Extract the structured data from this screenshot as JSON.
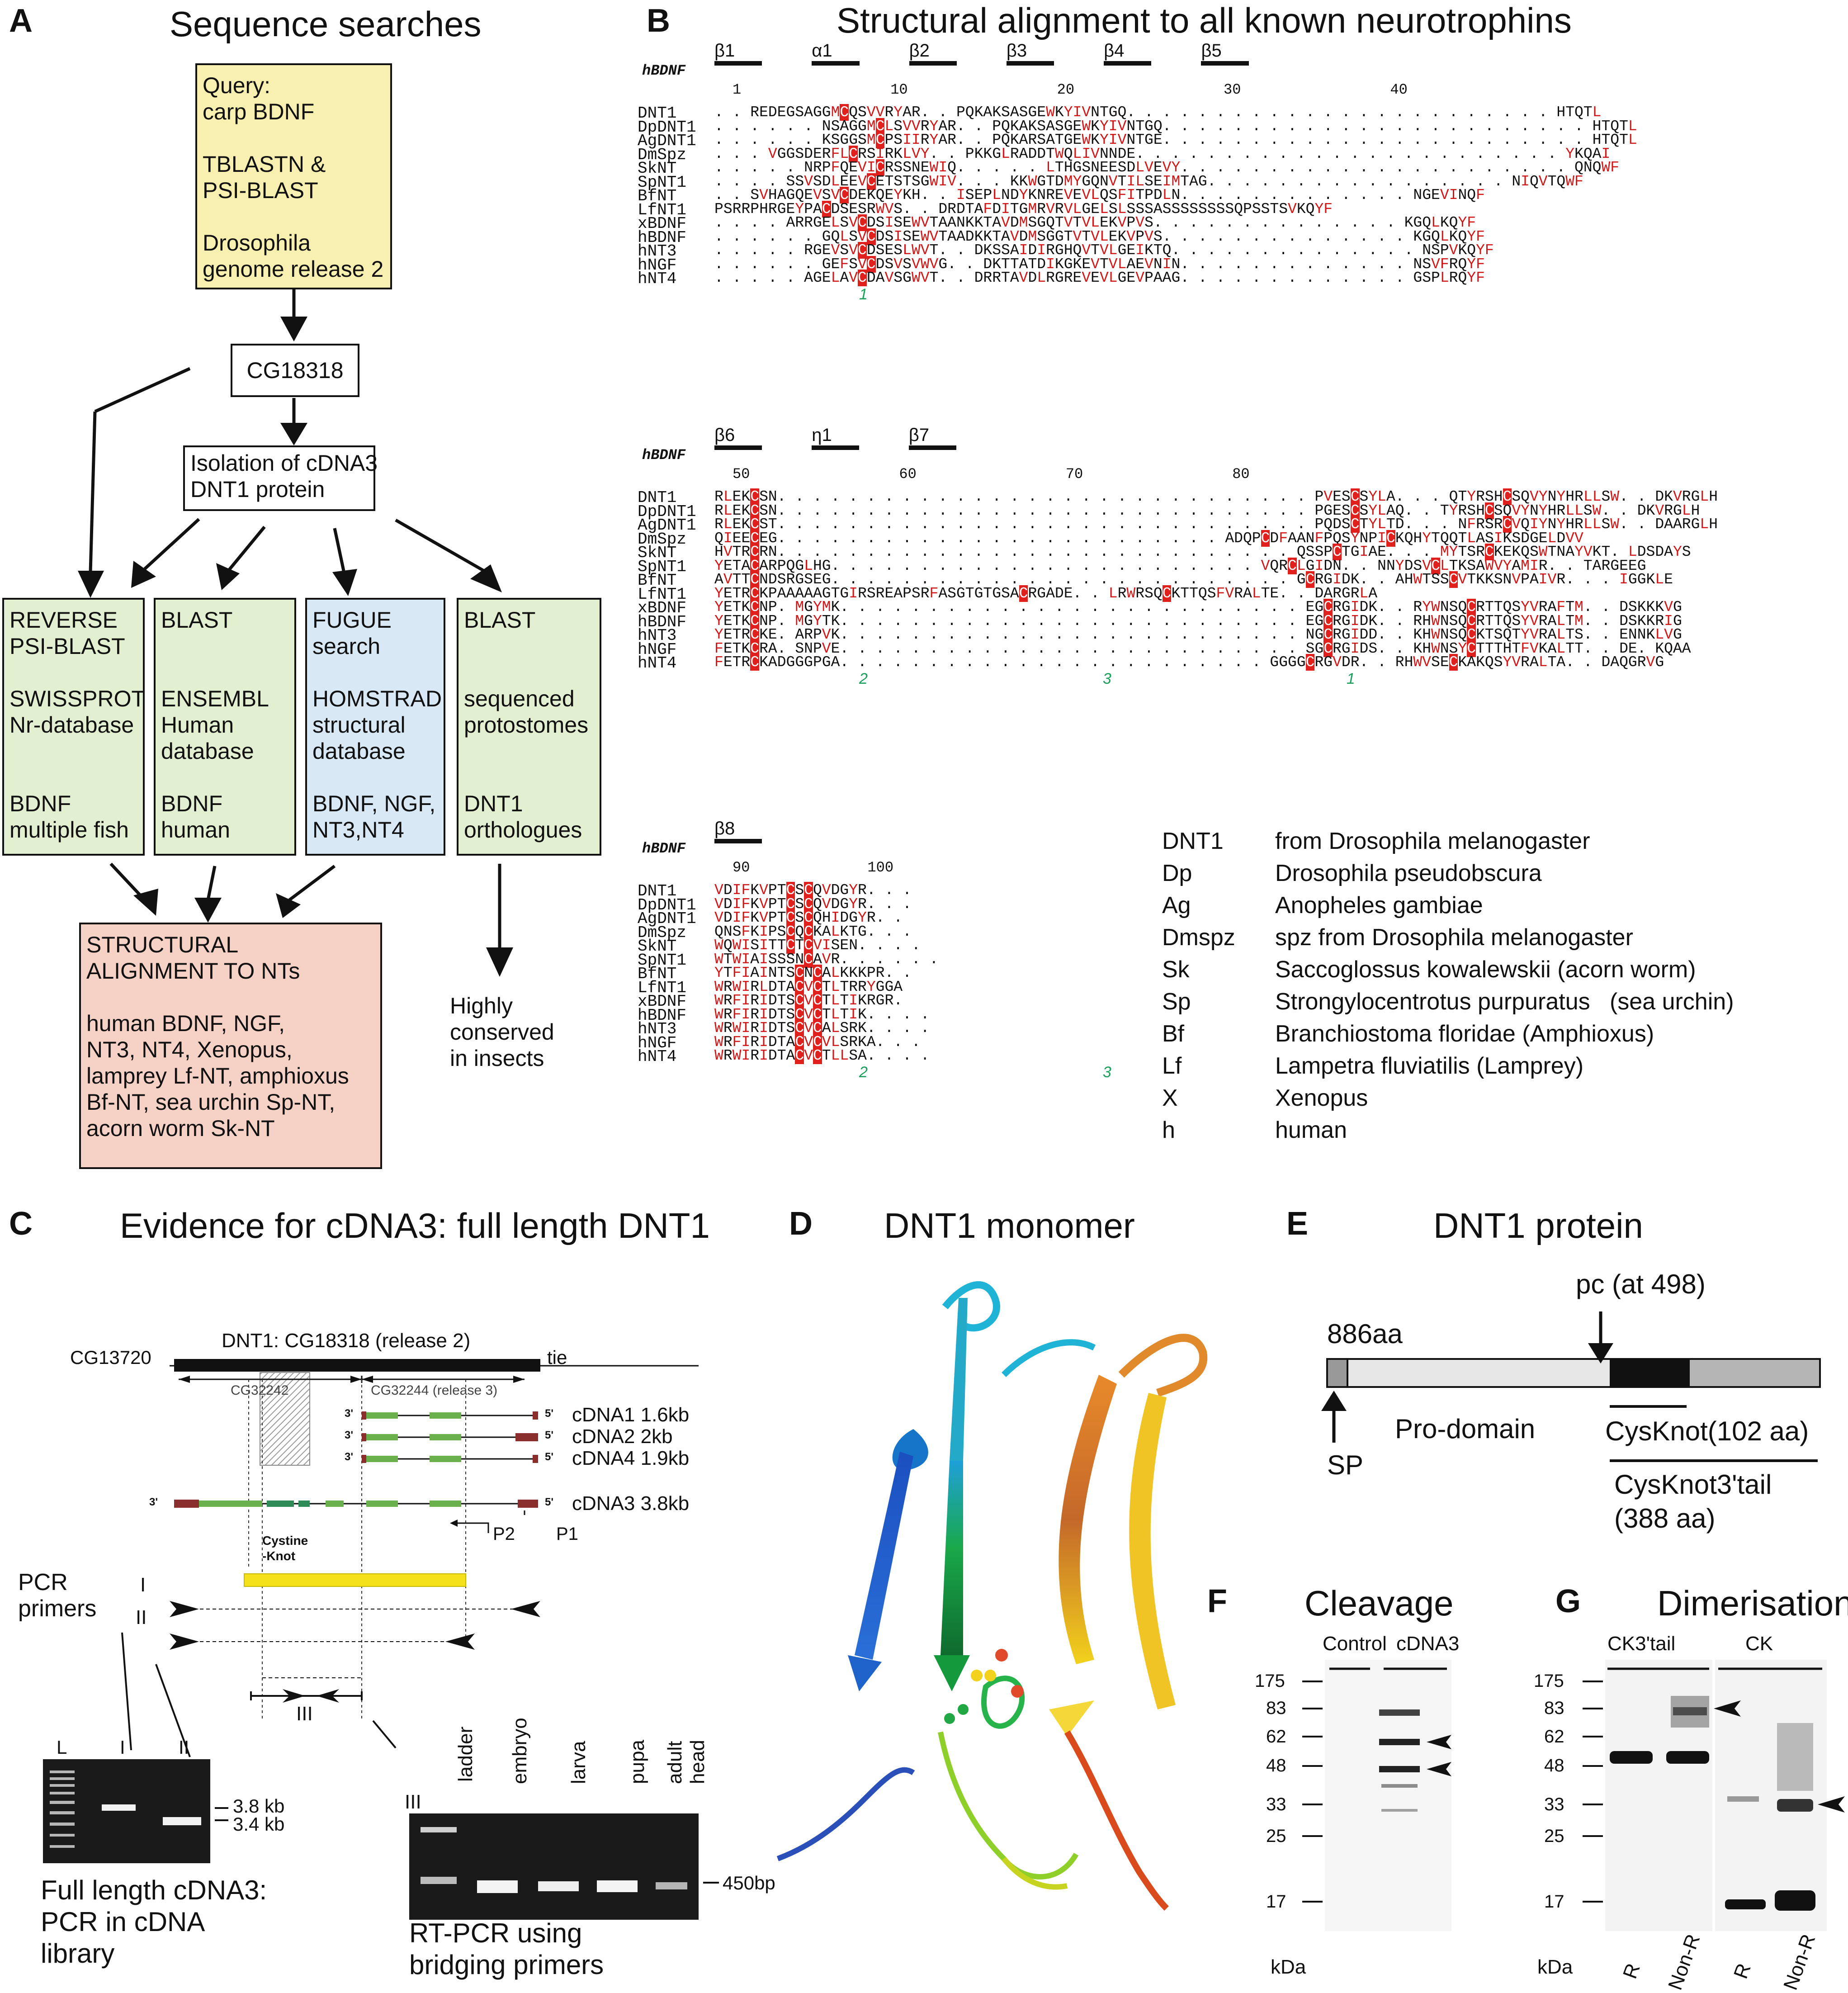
{
  "panels": {
    "A": {
      "label": "A",
      "title": "Sequence searches",
      "query_box": [
        "Query:",
        "carp BDNF",
        "",
        "TBLASTN &",
        "PSI-BLAST",
        "",
        "Drosophila",
        "genome release 2"
      ],
      "cg_box": "CG18318",
      "isolation_box": [
        "Isolation of cDNA3",
        "DNT1 protein"
      ],
      "search_boxes": [
        {
          "lines": [
            "REVERSE",
            "PSI-BLAST",
            "",
            "SWISSPROT",
            "Nr-database",
            "",
            "",
            "BDNF",
            "multiple fish"
          ],
          "color": "#e2efd0"
        },
        {
          "lines": [
            "BLAST",
            "",
            "",
            "ENSEMBL",
            "Human",
            "database",
            "",
            "BDNF",
            "human"
          ],
          "color": "#e2efd0"
        },
        {
          "lines": [
            "FUGUE",
            "search",
            "",
            "HOMSTRAD",
            "structural",
            "database",
            "",
            "BDNF, NGF,",
            "NT3,NT4"
          ],
          "color": "#d8e8f4"
        },
        {
          "lines": [
            "BLAST",
            "",
            "",
            "sequenced",
            "protostomes",
            "",
            "",
            "DNT1",
            "orthologues"
          ],
          "color": "#e2efd0"
        }
      ],
      "structural_box": [
        "STRUCTURAL",
        "ALIGNMENT TO NTs",
        "",
        "human BDNF, NGF,",
        "NT3, NT4, Xenopus,",
        "lamprey Lf-NT, amphioxus",
        " Bf-NT, sea urchin Sp-NT,",
        "acorn worm Sk-NT"
      ],
      "conserved_note": [
        "Highly",
        "conserved",
        "in insects"
      ]
    },
    "B": {
      "label": "B",
      "title": "Structural alignment to all known neurotrophins",
      "ref_name": "hBDNF",
      "blocks": [
        {
          "ss": [
            "β1",
            "α1",
            "β2",
            "β3",
            "β4",
            "β5"
          ],
          "numbers": [
            "1",
            "10",
            "20",
            "30",
            "40"
          ],
          "cys_marks": [
            "1"
          ],
          "rows": [
            {
              "name": "DNT1",
              "seq": ". . REDEGSAGGMCQSVVRYAR. . PQKAKSASGEWKYIVNTGQ. . . . . . . . . . . . . . . . . . . . . . . . HTQTL"
            },
            {
              "name": "DpDNT1",
              "seq": ". . . . . . NSAGGMCLSVVRYAR. . PQKAKSASGEWKYIVNTGQ. . . . . . . . . . . . . . . . . . . . . . . . HTQTL"
            },
            {
              "name": "AgDNT1",
              "seq": ". . . . . . KSGGSMCPSIIRYAR. . PQKARSATGEWKYIVNTGE. . . . . . . . . . . . . . . . . . . . . . . . HTQTL"
            },
            {
              "name": "DmSpz",
              "seq": ". . . VGGSDERFLCRSIRKLVY. . PKKGLRADDTWQLIVNNDE. . . . . . . . . . . . . . . . . . . . . . . . YKQAI"
            },
            {
              "name": "SkNT",
              "seq": ". . . . . NRPFQEVICRSSNEWIQ. . . . . LTHGSNEESDLVEVY. . . . . . . . . . . . . . . . . . . . . . QNQWF"
            },
            {
              "name": "SpNT1",
              "seq": ". . . . SSVSDLEEVCETSTSGWIV. . . KKWGTDMYGQNVTILSEIMTAG. . . . . . . . . . . . . . . . . NIQVTQWF"
            },
            {
              "name": "BfNT",
              "seq": ". . SVHAGQEVSVCDEKQEYKH. . ISEPLNDYKNREVEVLQSFITPDLN. . . . . . . . . . . . . NGEVINQF"
            },
            {
              "name": "LfNT1",
              "seq": "PSRRPHRGEYPACDSESRWVS. . DRDTAFDITGMRVRVLGELSLSSSASSSSSSSSQPSSTSVKQYF"
            },
            {
              "name": "xBDNF",
              "seq": ". . . . ARRGELSVCDSISEWVTAANKKTAVDMSGQTVTVLEKVPVS. . . . . . . . . . . . . . KGQLKQYF"
            },
            {
              "name": "hBDNF",
              "seq": ". . . . . . GQLSVCDSISEWVTAADKKTAVDMSGGTVTVLEKVPVS. . . . . . . . . . . . . . KGQLKQYF"
            },
            {
              "name": "hNT3",
              "seq": ". . . . . RGEVSVCDSESLWVT. . DKSSAIDIRGHQVTVLGEIKTQ. . . . . . . . . . . . . . NSPVKQYF"
            },
            {
              "name": "hNGF",
              "seq": ". . . . . . GEFSVCDSVSVWVG. . DKTTATDIKGKEVTVLAEVNIN. . . . . . . . . . . . . NSVFRQYF"
            },
            {
              "name": "hNT4",
              "seq": ". . . . . AGELAVCDAVSGWVT. . DRRTAVDLRGREVEVLGEVPAAG. . . . . . . . . . . . . GSPLRQYF"
            }
          ]
        },
        {
          "ss": [
            "β6",
            "η1",
            "β7"
          ],
          "numbers": [
            "50",
            "60",
            "70",
            "80"
          ],
          "cys_marks": [
            "2",
            "3",
            "1"
          ],
          "rows": [
            {
              "name": "DNT1",
              "seq": "RLEKCSN. . . . . . . . . . . . . . . . . . . . . . . . . . . . . . PVESCSYLA. . . QTYRSHCSQVYNYHRLLSW. . DKVRGLH"
            },
            {
              "name": "DpDNT1",
              "seq": "RLEKCSN. . . . . . . . . . . . . . . . . . . . . . . . . . . . . . PGESCSYLAQ. . TYRSHCSQVYNYHRLLSW. . DKVRGLH"
            },
            {
              "name": "AgDNT1",
              "seq": "RLEKCST. . . . . . . . . . . . . . . . . . . . . . . . . . . . . . PQDSCTYLTD. . . NFRSRCVQIYNYHRLLSW. . DAARGLH"
            },
            {
              "name": "DmSpz",
              "seq": "QIEECEG. . . . . . . . . . . . . . . . . . . . . . . . . ADQPCDFAANFPQSYNPICKQHYTQQTLASIKSDGELDVV"
            },
            {
              "name": "SkNT",
              "seq": "HVTRCRN. . . . . . . . . . . . . . . . . . . . . . . . . . . . . QSSPCTGIAE. . . MYTSRCKEKQSWTNAYVKT. LDSDAYS"
            },
            {
              "name": "SpNT1",
              "seq": "YETACARPQGLHG. . . . . . . . . . . . . . . . . . . . . . . . VQRCLGIDN. . NNYDSVCLTKSAWVYAMIR. . TARGEEG"
            },
            {
              "name": "BfNT",
              "seq": "AVTTCNDSRGSEG. . . . . . . . . . . . . . . . . . . . . . . . . . GCRGIDK. . AHWTSSCVTKKSNVPAIVR. . . IGGKLE"
            },
            {
              "name": "LfNT1",
              "seq": "YETRCKPAAAAAGTGIRSREAPSRFASGTGTGSACRGADE. . LRWRSQCKTTQSFVRALTE. . DARGRLA"
            },
            {
              "name": "xBDNF",
              "seq": "YETKCNP. MGYMK. . . . . . . . . . . . . . . . . . . . . . . . . . EGCRGIDK. . RYWNSQCRTTQSYVRAFTM. . DSKKKVG"
            },
            {
              "name": "hBDNF",
              "seq": "YETKCNP. MGYTK. . . . . . . . . . . . . . . . . . . . . . . . . . EGCRGIDK. . RHWNSQCRTTQSYVRALTM. . DSKKRIG"
            },
            {
              "name": "hNT3",
              "seq": "YETRCKE. ARPVK. . . . . . . . . . . . . . . . . . . . . . . . . . NGCRGIDD. . KHWNSQCKTSQTYVRALTS. . ENNKLVG"
            },
            {
              "name": "hNGF",
              "seq": "FETKCRA. SNPVE. . . . . . . . . . . . . . . . . . . . . . . . . . SGCRGIDS. . KHWNSYCTTTHTFVKALTT. . DE. KQAA"
            },
            {
              "name": "hNT4",
              "seq": "FETRCKADGGGPGA. . . . . . . . . . . . . . . . . . . . . . . . GGGGCRGVDR. . RHWVSECKAKQSYVRALTA. . DAQGRVG"
            }
          ]
        },
        {
          "ss": [
            "β8"
          ],
          "numbers": [
            "90",
            "100"
          ],
          "cys_marks": [
            "2",
            "3"
          ],
          "rows": [
            {
              "name": "DNT1",
              "seq": "VDIFKVPTCSCQVDGYR. . ."
            },
            {
              "name": "DpDNT1",
              "seq": "VDIFKVPTCSCQVDGYR. . ."
            },
            {
              "name": "AgDNT1",
              "seq": "VDIFKVPTCSCQHIDGYR. ."
            },
            {
              "name": "DmSpz",
              "seq": "QNSFKIPSCQCKALKTG. . ."
            },
            {
              "name": "SkNT",
              "seq": "WQWISITTCTCVISEN. . . ."
            },
            {
              "name": "SpNT1",
              "seq": "WTWIAISSSNCAVR. . . . . ."
            },
            {
              "name": "BfNT",
              "seq": "YTFIAINTSCNCALKKKPR. ."
            },
            {
              "name": "LfNT1",
              "seq": "WRWIRLDTACVCTLTRRYGGA"
            },
            {
              "name": "xBDNF",
              "seq": "WRFIRIDTSCVCTLTIKRGR."
            },
            {
              "name": "hBDNF",
              "seq": "WRFIRIDTSCVCTLTIK. . . ."
            },
            {
              "name": "hNT3",
              "seq": "WRWIRIDTSCVCALSRK. . . ."
            },
            {
              "name": "hNGF",
              "seq": "WRFIRIDTACVCVLSRKA. . ."
            },
            {
              "name": "hNT4",
              "seq": "WRWIRIDTACVCTLLSA. . . ."
            }
          ]
        }
      ],
      "legend": [
        {
          "abbr": "DNT1",
          "desc": "from Drosophila melanogaster"
        },
        {
          "abbr": "Dp",
          "desc": "Drosophila pseudobscura"
        },
        {
          "abbr": "Ag",
          "desc": "Anopheles gambiae"
        },
        {
          "abbr": "Dmspz",
          "desc": "spz from Drosophila melanogaster"
        },
        {
          "abbr": "Sk",
          "desc": "Saccoglossus kowalewskii (acorn worm)"
        },
        {
          "abbr": "Sp",
          "desc": "Strongylocentrotus purpuratus   (sea urchin)"
        },
        {
          "abbr": "Bf",
          "desc": "Branchiostoma floridae (Amphioxus)"
        },
        {
          "abbr": "Lf",
          "desc": "Lampetra fluviatilis (Lamprey)"
        },
        {
          "abbr": "X",
          "desc": "Xenopus"
        },
        {
          "abbr": "h",
          "desc": "human"
        }
      ]
    },
    "C": {
      "label": "C",
      "title": "Evidence for cDNA3: full length DNT1",
      "gene_left": "CG13720",
      "gene_main": "DNT1: CG18318 (release 2)",
      "gene_right": "tie",
      "sub_left": "CG32242",
      "sub_right": "CG32244 (release 3)",
      "cdnas": [
        "cDNA1 1.6kb",
        "cDNA2 2kb",
        "cDNA4 1.9kb",
        "cDNA3 3.8kb"
      ],
      "ends": [
        "3'",
        "5'"
      ],
      "cys_knot": [
        "Cystine",
        "-Knot"
      ],
      "primers": [
        "P2",
        "P1"
      ],
      "pcr_label": [
        "PCR",
        "primers"
      ],
      "roman": [
        "I",
        "II",
        "III"
      ],
      "gel1_lanes": [
        "L",
        "I",
        "II"
      ],
      "gel1_sizes": [
        "3.8 kb",
        "3.4 kb"
      ],
      "gel1_caption": [
        "Full length cDNA3:",
        "PCR in cDNA",
        "library"
      ],
      "gel2_lanes": [
        "III",
        "ladder",
        "embryo",
        "larva",
        "pupa",
        "adult",
        "head"
      ],
      "gel2_size": "450bp",
      "gel2_caption": [
        "RT-PCR using",
        "bridging primers"
      ]
    },
    "D": {
      "label": "D",
      "title": "DNT1 monomer"
    },
    "E": {
      "label": "E",
      "title": "DNT1 protein",
      "length": "886aa",
      "pc": "pc (at 498)",
      "sp": "SP",
      "prodomain": "Pro-domain",
      "cysknot": "CysKnot(102 aa)",
      "tail": [
        "CysKnot3'tail",
        "(388 aa)"
      ]
    },
    "F": {
      "label": "F",
      "title": "Cleavage",
      "lanes": [
        "Control",
        "cDNA3"
      ],
      "markers": [
        "175",
        "83",
        "62",
        "48",
        "33",
        "25",
        "17"
      ],
      "unit": "kDa"
    },
    "G": {
      "label": "G",
      "title": "Dimerisation",
      "groups": [
        "CK3'tail",
        "CK"
      ],
      "markers": [
        "175",
        "83",
        "62",
        "48",
        "33",
        "25",
        "17"
      ],
      "unit": "kDa",
      "lanes": [
        "R",
        "Non-R",
        "R",
        "Non-R"
      ]
    }
  }
}
